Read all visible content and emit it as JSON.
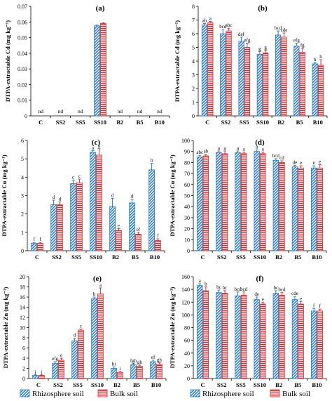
{
  "legend": {
    "rhizosphere": "Rhizosphere soil",
    "bulk": "Bulk soil",
    "rhizosphere_color": "#1f77c4",
    "bulk_color": "#d62728"
  },
  "chart_data": [
    {
      "panel": "(a)",
      "type": "bar",
      "ylabel": "DTPA-extractable Cd (mg kg⁻¹)",
      "categories": [
        "C",
        "SS2",
        "SS5",
        "SS10",
        "B2",
        "B5",
        "B10"
      ],
      "ylim": [
        0,
        0.07
      ],
      "yticks": [
        0,
        0.01,
        0.02,
        0.03,
        0.04,
        0.05,
        0.06,
        0.07
      ],
      "ytick_labels": [
        "0",
        "0.01",
        "0.02",
        "0.03",
        "0.04",
        "0.05",
        "0.06",
        "0.07"
      ],
      "series": [
        {
          "name": "Rhizosphere soil",
          "values": [
            0,
            0,
            0,
            0.0575,
            0,
            0,
            0
          ],
          "errors": [
            0,
            0,
            0,
            0.0005,
            0,
            0,
            0
          ]
        },
        {
          "name": "Bulk soil",
          "values": [
            0,
            0,
            0,
            0.059,
            0,
            0,
            0
          ],
          "errors": [
            0,
            0,
            0,
            0.0005,
            0,
            0,
            0
          ]
        }
      ],
      "annotations": [
        "nd",
        "nd",
        "nd",
        "",
        "nd",
        "nd",
        "nd"
      ]
    },
    {
      "panel": "(b)",
      "type": "bar",
      "ylabel": "DTPA-extractable Cd (mg kg⁻¹)",
      "categories": [
        "C",
        "SS2",
        "SS5",
        "SS10",
        "B2",
        "B5",
        "B10"
      ],
      "ylim": [
        0,
        8
      ],
      "yticks": [
        0,
        1,
        2,
        3,
        4,
        5,
        6,
        7,
        8
      ],
      "ytick_labels": [
        "0",
        "1",
        "2",
        "3",
        "4",
        "5",
        "6",
        "7",
        "8"
      ],
      "series": [
        {
          "name": "Rhizosphere soil",
          "values": [
            6.65,
            6.0,
            5.45,
            4.5,
            5.9,
            5.1,
            3.8
          ],
          "errors": [
            0.1,
            0.3,
            0.3,
            0.2,
            0.3,
            0.2,
            0.1
          ],
          "letters": [
            "ab",
            "bcd",
            "def",
            "g",
            "bcd",
            "efg",
            "h"
          ]
        },
        {
          "name": "Bulk soil",
          "values": [
            6.8,
            6.2,
            5.0,
            4.6,
            5.75,
            4.65,
            3.7
          ],
          "errors": [
            0.1,
            0.2,
            0.3,
            0.2,
            0.3,
            0.3,
            0.4
          ],
          "letters": [
            "a",
            "abc",
            "efg",
            "g",
            "cde",
            "fg",
            "h"
          ]
        }
      ]
    },
    {
      "panel": "(c)",
      "type": "bar",
      "ylabel": "DTPA-extractable Cu (mg kg⁻¹)",
      "categories": [
        "C",
        "SS2",
        "SS5",
        "SS10",
        "B2",
        "B5",
        "B10"
      ],
      "ylim": [
        0,
        6
      ],
      "yticks": [
        0,
        1,
        2,
        3,
        4,
        5,
        6
      ],
      "ytick_labels": [
        "0",
        "1",
        "2",
        "3",
        "4",
        "5",
        "6"
      ],
      "series": [
        {
          "name": "Rhizosphere soil",
          "values": [
            0.4,
            2.5,
            3.65,
            5.35,
            2.4,
            2.6,
            4.4
          ],
          "errors": [
            0.05,
            0.25,
            0.2,
            0.1,
            0.45,
            0.2,
            0.35
          ],
          "letters": [
            "f",
            "d",
            "c",
            "a",
            "d",
            "d",
            "b"
          ]
        },
        {
          "name": "Bulk soil",
          "values": [
            0.4,
            2.5,
            3.7,
            5.2,
            1.1,
            0.9,
            0.55
          ],
          "errors": [
            0.05,
            0.15,
            0.2,
            0.35,
            0.1,
            0.1,
            0.1
          ],
          "letters": [
            "f",
            "d",
            "c",
            "a",
            "e",
            "ef",
            "f"
          ]
        }
      ]
    },
    {
      "panel": "(d)",
      "type": "bar",
      "ylabel": "DTPA-extractable Cu (mg kg⁻¹)",
      "categories": [
        "C",
        "SS2",
        "SS5",
        "SS10",
        "B2",
        "B5",
        "B10"
      ],
      "ylim": [
        0,
        100
      ],
      "yticks": [
        0,
        10,
        20,
        30,
        40,
        50,
        60,
        70,
        80,
        90,
        100
      ],
      "ytick_labels": [
        "0",
        "10",
        "20",
        "30",
        "40",
        "50",
        "60",
        "70",
        "80",
        "90",
        "100"
      ],
      "series": [
        {
          "name": "Rhizosphere soil",
          "values": [
            85,
            89,
            89,
            90,
            82,
            76,
            75
          ],
          "errors": [
            1.5,
            1.5,
            1.5,
            1.5,
            1.5,
            1.5,
            2
          ],
          "letters": [
            "abc",
            "a",
            "a",
            "a",
            "bcd",
            "de",
            "e"
          ]
        },
        {
          "name": "Bulk soil",
          "values": [
            86,
            88,
            88,
            88,
            80,
            75,
            75
          ],
          "errors": [
            1.5,
            2.5,
            1.5,
            1.5,
            1.5,
            2,
            3
          ],
          "letters": [
            "ab",
            "a",
            "a",
            "a",
            "cd",
            "e",
            "e"
          ]
        }
      ]
    },
    {
      "panel": "(e)",
      "type": "bar",
      "ylabel": "DTPA-extractable Zn (mg kg⁻¹)",
      "categories": [
        "C",
        "SS2",
        "SS5",
        "SS10",
        "B2",
        "B5",
        "B10"
      ],
      "ylim": [
        0,
        20
      ],
      "yticks": [
        0,
        2,
        4,
        6,
        8,
        10,
        12,
        14,
        16,
        18,
        20
      ],
      "ytick_labels": [
        "0",
        "2",
        "4",
        "6",
        "8",
        "10",
        "12",
        "14",
        "16",
        "18",
        "20"
      ],
      "series": [
        {
          "name": "Rhizosphere soil",
          "values": [
            0.6,
            3.0,
            7.4,
            15.7,
            2.0,
            2.7,
            3.3
          ],
          "errors": [
            0.1,
            0.3,
            0.5,
            0.3,
            0.3,
            0.2,
            0.3
          ],
          "letters": [
            "j",
            "efg",
            "d",
            "b",
            "hi",
            "fgh",
            "ef"
          ]
        },
        {
          "name": "Bulk soil",
          "values": [
            0.6,
            3.6,
            9.5,
            16.6,
            1.2,
            2.4,
            2.8
          ],
          "errors": [
            0.1,
            0.4,
            0.2,
            1.2,
            0.2,
            0.2,
            0.3
          ],
          "letters": [
            "j",
            "e",
            "c",
            "a",
            "i",
            "gh",
            "gh"
          ]
        }
      ]
    },
    {
      "panel": "(f)",
      "type": "bar",
      "ylabel": "DTPA-extractable Zn (mg kg⁻¹)",
      "categories": [
        "C",
        "SS2",
        "SS5",
        "SS10",
        "B2",
        "B5",
        "B10"
      ],
      "ylim": [
        0,
        160
      ],
      "yticks": [
        0,
        20,
        40,
        60,
        80,
        100,
        120,
        140,
        160
      ],
      "ytick_labels": [
        "0",
        "20",
        "40",
        "60",
        "80",
        "100",
        "120",
        "140",
        "160"
      ],
      "series": [
        {
          "name": "Rhizosphere soil",
          "values": [
            146,
            135,
            130,
            124,
            134,
            124,
            106
          ],
          "errors": [
            3,
            4,
            6,
            4,
            4,
            5,
            4
          ],
          "letters": [
            "a",
            "bc",
            "bcd",
            "de",
            "bc",
            "cde",
            "f"
          ]
        },
        {
          "name": "Bulk soil",
          "values": [
            138,
            134,
            131,
            117,
            131,
            117,
            106
          ],
          "errors": [
            6,
            4,
            5,
            3,
            4,
            4,
            3
          ],
          "letters": [
            "b",
            "bc",
            "bcd",
            "e",
            "bcd",
            "e",
            "f"
          ]
        }
      ]
    }
  ]
}
